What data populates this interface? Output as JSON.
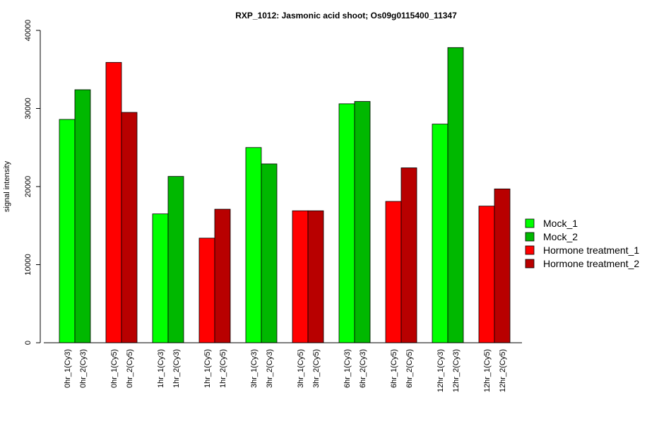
{
  "chart_data": {
    "type": "bar",
    "title": "RXP_1012: Jasmonic acid shoot; Os09g0115400_11347",
    "xlabel": "",
    "ylabel": "signal intensity",
    "ylim": [
      0,
      40000
    ],
    "yticks": [
      0,
      10000,
      20000,
      30000,
      40000
    ],
    "grid": false,
    "legend_position": "right",
    "series": [
      {
        "name": "Mock_1",
        "color": "#00FF00"
      },
      {
        "name": "Mock_2",
        "color": "#00B800"
      },
      {
        "name": "Hormone treatment_1",
        "color": "#FF0000"
      },
      {
        "name": "Hormone treatment_2",
        "color": "#B80000"
      }
    ],
    "bars": [
      {
        "label": "0hr_1(Cy3)",
        "value": 28600,
        "series": 0
      },
      {
        "label": "0hr_2(Cy3)",
        "value": 32400,
        "series": 1
      },
      {
        "label": "0hr_1(Cy5)",
        "value": 35900,
        "series": 2
      },
      {
        "label": "0hr_2(Cy5)",
        "value": 29500,
        "series": 3
      },
      {
        "label": "1hr_1(Cy3)",
        "value": 16500,
        "series": 0
      },
      {
        "label": "1hr_2(Cy3)",
        "value": 21300,
        "series": 1
      },
      {
        "label": "1hr_1(Cy5)",
        "value": 13400,
        "series": 2
      },
      {
        "label": "1hr_2(Cy5)",
        "value": 17100,
        "series": 3
      },
      {
        "label": "3hr_1(Cy3)",
        "value": 25000,
        "series": 0
      },
      {
        "label": "3hr_2(Cy3)",
        "value": 22900,
        "series": 1
      },
      {
        "label": "3hr_1(Cy5)",
        "value": 16900,
        "series": 2
      },
      {
        "label": "3hr_2(Cy5)",
        "value": 16900,
        "series": 3
      },
      {
        "label": "6hr_1(Cy3)",
        "value": 30600,
        "series": 0
      },
      {
        "label": "6hr_2(Cy3)",
        "value": 30900,
        "series": 1
      },
      {
        "label": "6hr_1(Cy5)",
        "value": 18100,
        "series": 2
      },
      {
        "label": "6hr_2(Cy5)",
        "value": 22400,
        "series": 3
      },
      {
        "label": "12hr_1(Cy3)",
        "value": 28000,
        "series": 0
      },
      {
        "label": "12hr_2(Cy3)",
        "value": 37800,
        "series": 1
      },
      {
        "label": "12hr_1(Cy5)",
        "value": 17500,
        "series": 2
      },
      {
        "label": "12hr_2(Cy5)",
        "value": 19700,
        "series": 3
      }
    ]
  }
}
